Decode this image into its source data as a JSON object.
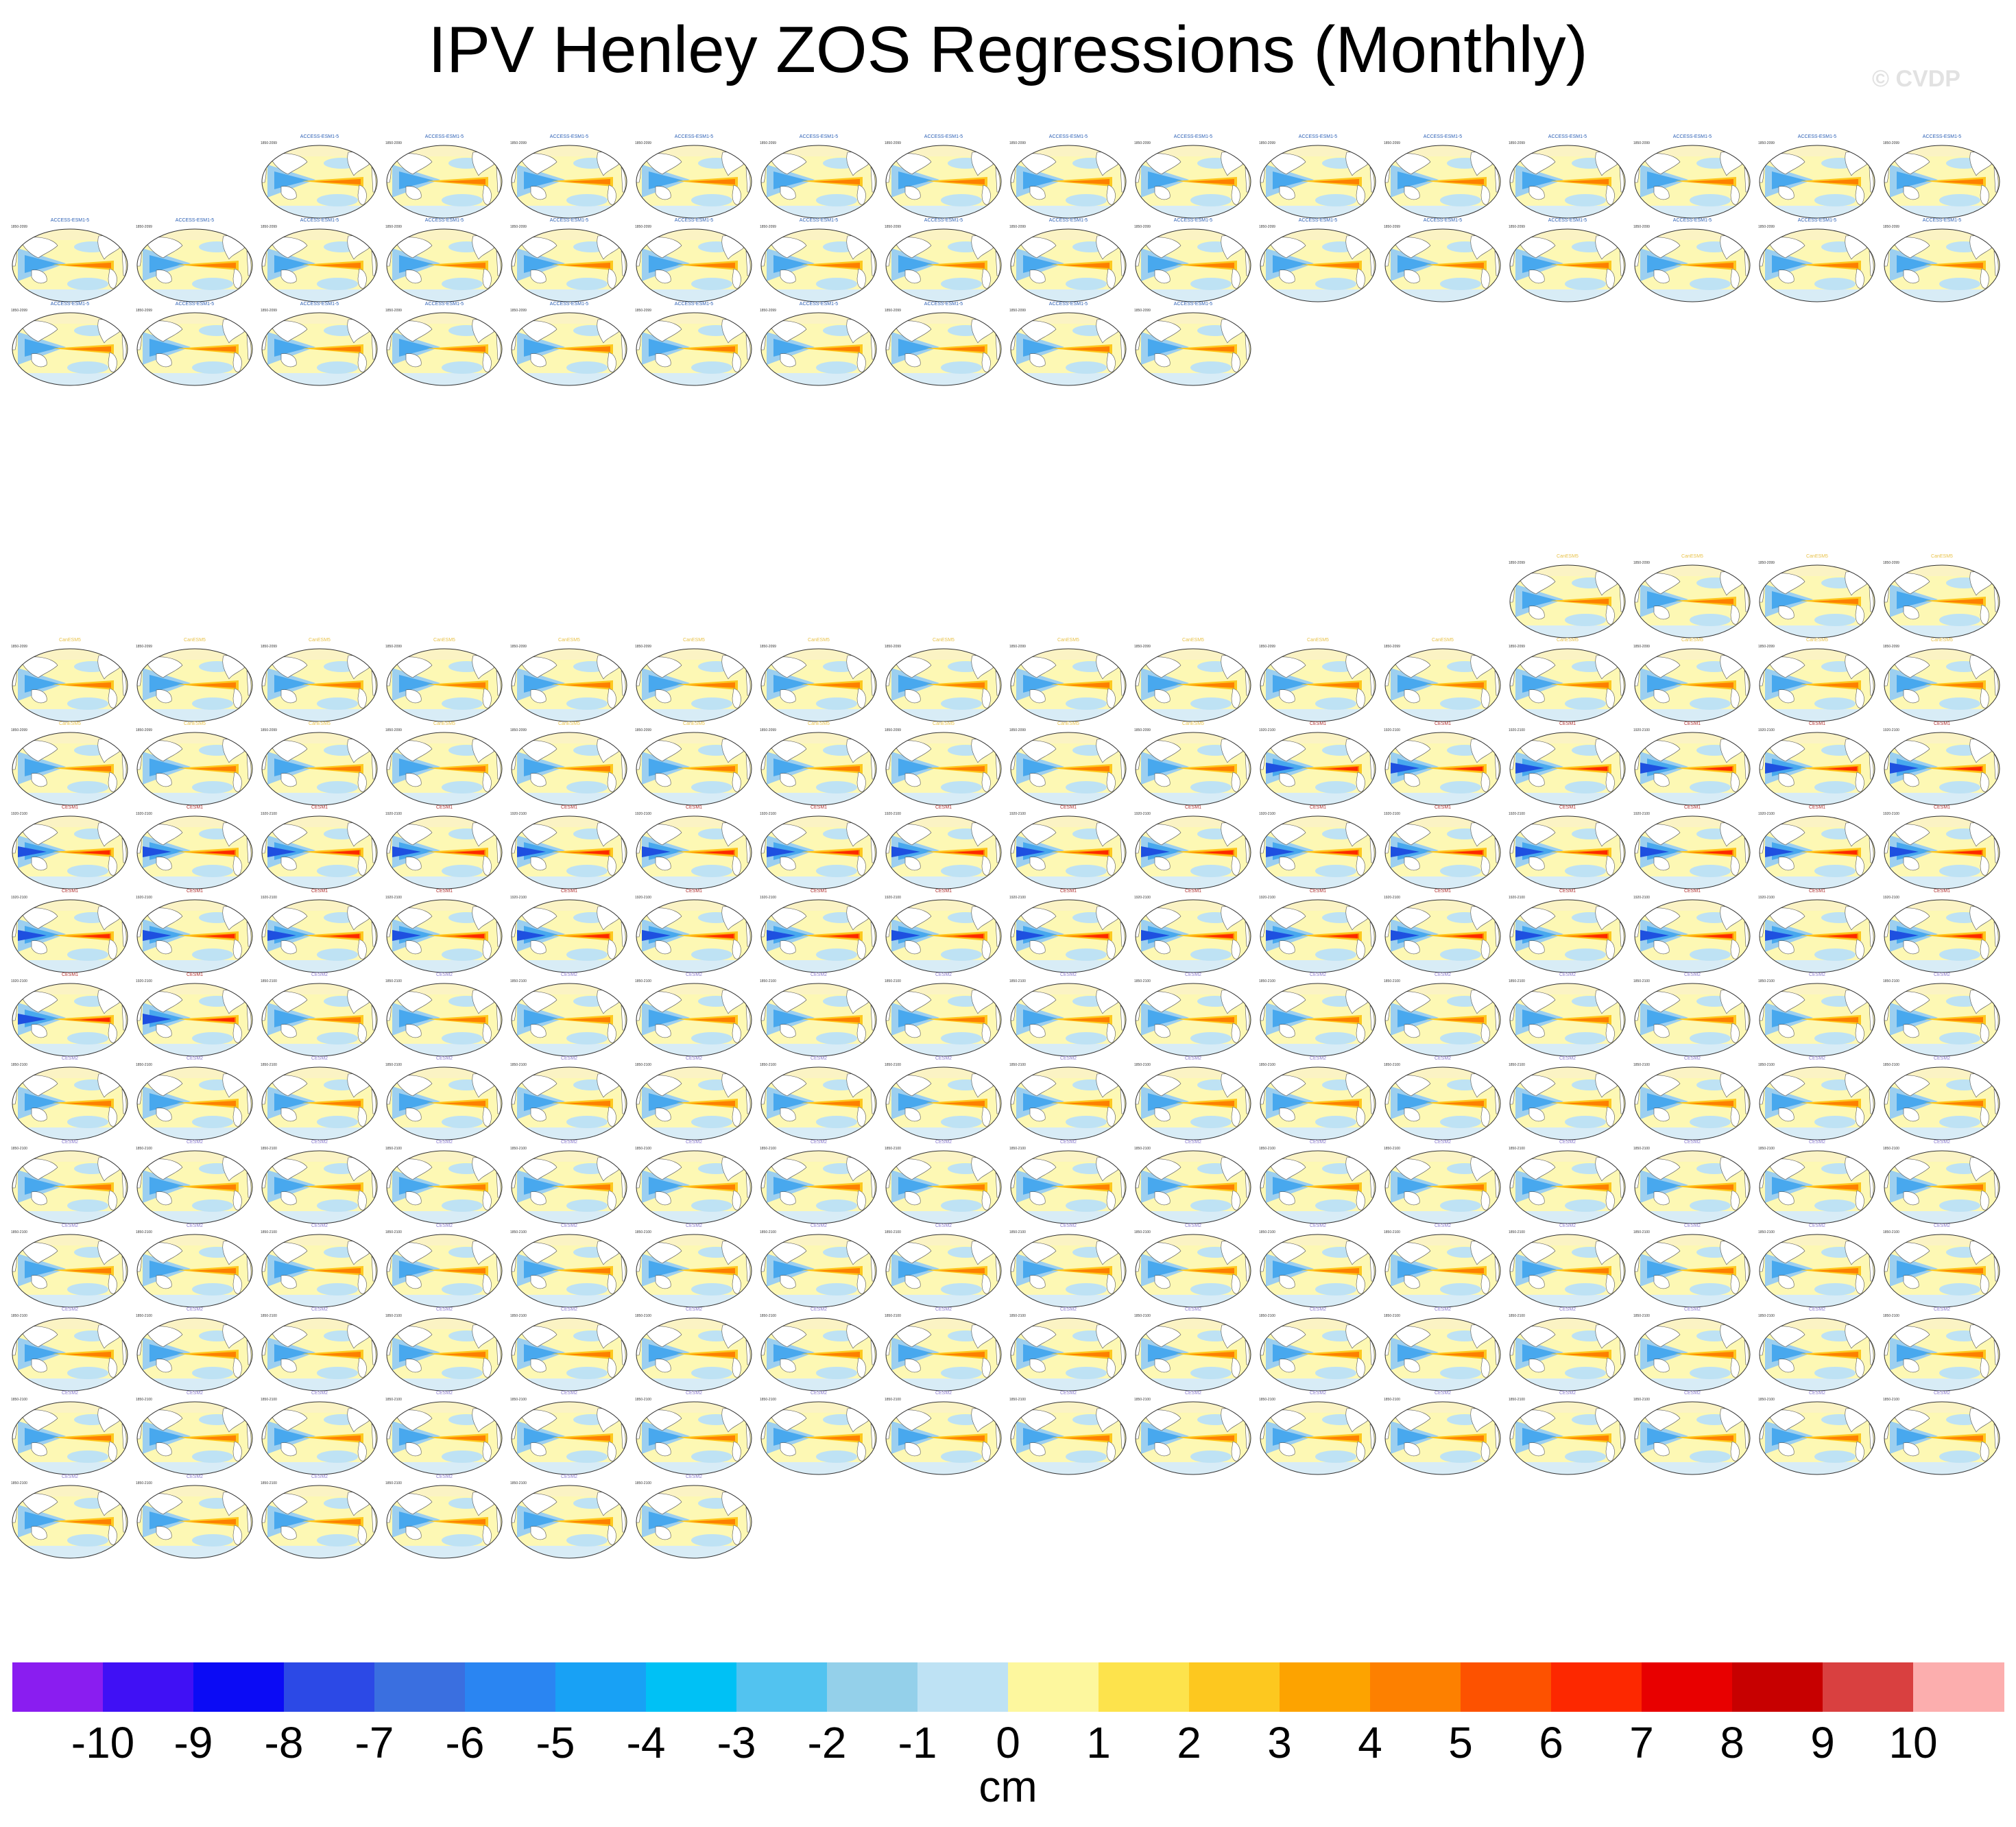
{
  "title": "IPV Henley ZOS Regressions (Monthly)",
  "watermark": "© CVDP",
  "colorbar": {
    "units": "cm",
    "tick_labels": [
      "-10",
      "-9",
      "-8",
      "-7",
      "-6",
      "-5",
      "-4",
      "-3",
      "-2",
      "-1",
      "0",
      "1",
      "2",
      "3",
      "4",
      "5",
      "6",
      "7",
      "8",
      "9",
      "10"
    ],
    "colors": [
      "#8a1df0",
      "#4010f5",
      "#0b0bf5",
      "#2c49e6",
      "#3a6fe0",
      "#2a85f2",
      "#18a1f5",
      "#00c1f5",
      "#52c3f0",
      "#94d0ea",
      "#bee2f4",
      "#fdf79e",
      "#fde34c",
      "#fdc81f",
      "#fda300",
      "#fd8000",
      "#fd5200",
      "#fd2800",
      "#e80000",
      "#c70000",
      "#d94040",
      "#fcaeae"
    ]
  },
  "chart_data": {
    "type": "heatmap",
    "title": "IPV Henley ZOS Regressions (Monthly)",
    "colorbar_units": "cm",
    "colorbar_levels": [
      -10,
      -9,
      -8,
      -7,
      -6,
      -5,
      -4,
      -3,
      -2,
      -1,
      0,
      1,
      2,
      3,
      4,
      5,
      6,
      7,
      8,
      9,
      10
    ],
    "groups": [
      {
        "model": "ACCESS-ESM1-5",
        "members": 40,
        "title_color": "#2b5fb4",
        "year_label": "1850-2099"
      },
      {
        "model": "CanESM5",
        "members": 30,
        "title_color": "#e8c24a",
        "year_label": "1850-2099"
      },
      {
        "model": "CESM1",
        "members": 40,
        "title_color": "#b03030",
        "year_label": "1920-2100"
      },
      {
        "model": "CESM2",
        "members": 100,
        "title_color": "#8a7ad0",
        "year_label": "1850-2100"
      }
    ]
  }
}
